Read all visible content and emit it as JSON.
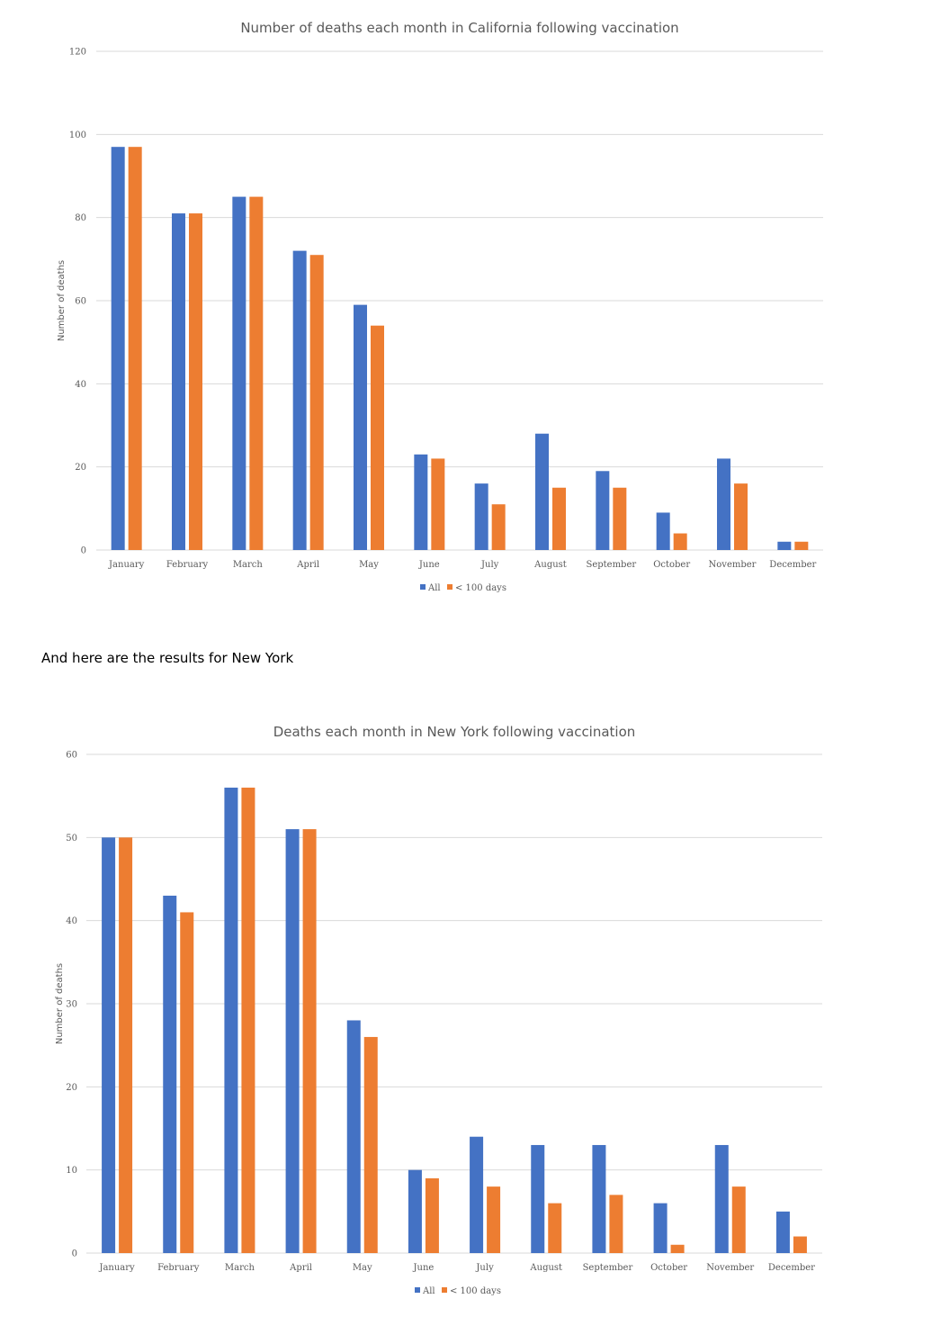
{
  "colors": {
    "series_all": "#4472C4",
    "series_lt100": "#ED7D31",
    "grid": "#D9D9D9",
    "text": "#595959"
  },
  "prose": {
    "text": "And here are the results for New York"
  },
  "chart_data": [
    {
      "type": "bar",
      "title": "Number of deaths each month in California following vaccination",
      "xlabel": "",
      "ylabel": "Number of deaths",
      "ylim": [
        0,
        120
      ],
      "yticks": [
        0,
        20,
        40,
        60,
        80,
        100,
        120
      ],
      "grid": true,
      "legend": "bottom",
      "categories": [
        "January",
        "February",
        "March",
        "April",
        "May",
        "June",
        "July",
        "August",
        "September",
        "October",
        "November",
        "December"
      ],
      "series": [
        {
          "name": "All",
          "values": [
            97,
            81,
            85,
            72,
            59,
            23,
            16,
            28,
            19,
            9,
            22,
            2
          ]
        },
        {
          "name": "< 100 days",
          "values": [
            97,
            81,
            85,
            71,
            54,
            22,
            11,
            15,
            15,
            4,
            16,
            2
          ]
        }
      ]
    },
    {
      "type": "bar",
      "title": "Deaths each month in New York following vaccination",
      "xlabel": "",
      "ylabel": "Number of deaths",
      "ylim": [
        0,
        60
      ],
      "yticks": [
        0,
        10,
        20,
        30,
        40,
        50,
        60
      ],
      "grid": true,
      "legend": "bottom",
      "categories": [
        "January",
        "February",
        "March",
        "April",
        "May",
        "June",
        "July",
        "August",
        "September",
        "October",
        "November",
        "December"
      ],
      "series": [
        {
          "name": "All",
          "values": [
            50,
            43,
            56,
            51,
            28,
            10,
            14,
            13,
            13,
            6,
            13,
            5
          ]
        },
        {
          "name": "< 100 days",
          "values": [
            50,
            41,
            56,
            51,
            26,
            9,
            8,
            6,
            7,
            1,
            8,
            2
          ]
        }
      ]
    }
  ]
}
